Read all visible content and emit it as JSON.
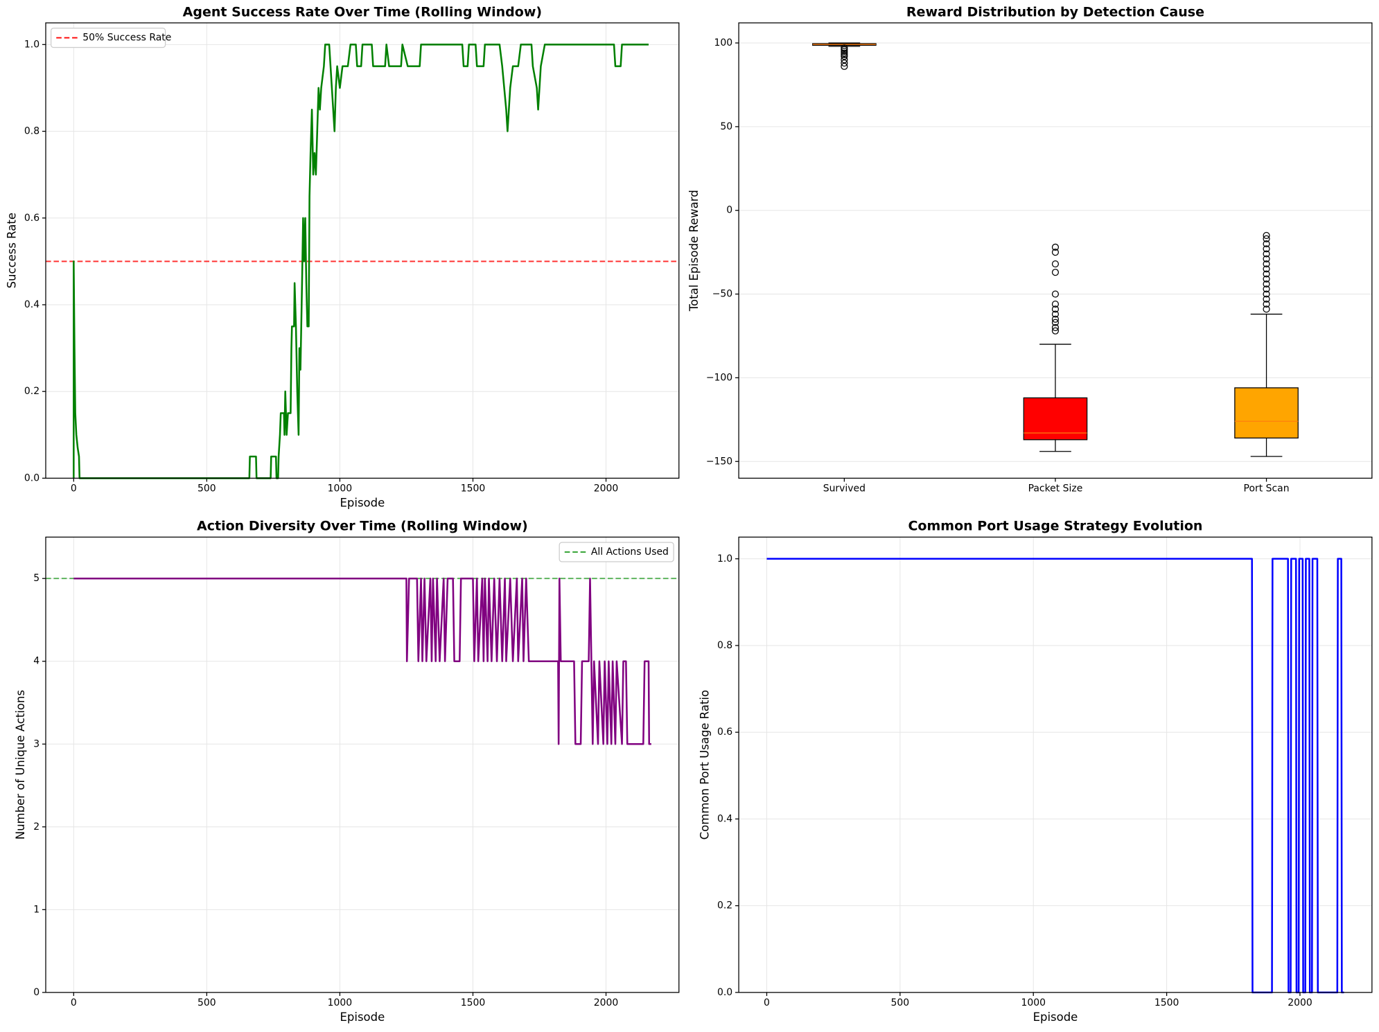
{
  "chart_data": [
    {
      "type": "line",
      "title": "Agent Success Rate Over Time (Rolling Window)",
      "xlabel": "Episode",
      "ylabel": "Success Rate",
      "xlim": [
        -105,
        2274
      ],
      "ylim": [
        0,
        1.05
      ],
      "xticks": [
        0,
        500,
        1000,
        1500,
        2000
      ],
      "yticks": [
        {
          "value": 0,
          "label": "0.0"
        },
        0.2,
        0.4,
        0.6,
        0.8,
        {
          "value": 1,
          "label": "1.0"
        }
      ],
      "grid": true,
      "legend": "upper left",
      "hlines": [
        {
          "value": 0.5,
          "label": "50% Success Rate",
          "color": "#ff0000"
        }
      ],
      "x": [
        0,
        0,
        3,
        6,
        10,
        15,
        20,
        22,
        660,
        662,
        685,
        687,
        740,
        742,
        760,
        762,
        768,
        770,
        775,
        778,
        790,
        792,
        795,
        800,
        805,
        815,
        818,
        820,
        828,
        830,
        835,
        840,
        845,
        848,
        852,
        855,
        858,
        862,
        866,
        870,
        874,
        878,
        883,
        886,
        890,
        895,
        900,
        905,
        910,
        915,
        920,
        925,
        930,
        940,
        945,
        960,
        965,
        975,
        980,
        985,
        990,
        1000,
        1010,
        1030,
        1040,
        1060,
        1065,
        1080,
        1085,
        1120,
        1125,
        1170,
        1175,
        1185,
        1230,
        1235,
        1255,
        1300,
        1305,
        1460,
        1465,
        1480,
        1485,
        1510,
        1515,
        1540,
        1545,
        1600,
        1610,
        1625,
        1630,
        1640,
        1650,
        1670,
        1680,
        1720,
        1725,
        1740,
        1745,
        1755,
        1770,
        2030,
        2035,
        2055,
        2060,
        2160
      ],
      "series": [
        {
          "color": "#008000",
          "values": [
            0,
            0.5,
            0.3,
            0.15,
            0.1,
            0.07,
            0.05,
            0,
            0,
            0.05,
            0.05,
            0,
            0,
            0.05,
            0.05,
            0,
            0,
            0.05,
            0.1,
            0.15,
            0.15,
            0.1,
            0.2,
            0.1,
            0.15,
            0.15,
            0.3,
            0.35,
            0.35,
            0.45,
            0.35,
            0.2,
            0.1,
            0.3,
            0.25,
            0.35,
            0.45,
            0.6,
            0.5,
            0.6,
            0.45,
            0.35,
            0.35,
            0.65,
            0.75,
            0.85,
            0.7,
            0.75,
            0.7,
            0.8,
            0.9,
            0.85,
            0.9,
            0.95,
            1,
            1,
            0.95,
            0.85,
            0.8,
            0.9,
            0.95,
            0.9,
            0.95,
            0.95,
            1,
            1,
            0.95,
            0.95,
            1,
            1,
            0.95,
            0.95,
            1,
            0.95,
            0.95,
            1,
            0.95,
            0.95,
            1,
            1,
            0.95,
            0.95,
            1,
            1,
            0.95,
            0.95,
            1,
            1,
            0.95,
            0.85,
            0.8,
            0.9,
            0.95,
            0.95,
            1,
            1,
            0.95,
            0.9,
            0.85,
            0.95,
            1,
            1,
            0.95,
            0.95,
            1,
            1
          ]
        }
      ]
    },
    {
      "type": "box",
      "title": "Reward Distribution by Detection Cause",
      "ylabel": "Total Episode Reward",
      "ylim": [
        -160,
        112
      ],
      "yticks": [
        {
          "value": -150,
          "label": "−150"
        },
        {
          "value": -100,
          "label": "−100"
        },
        {
          "value": -50,
          "label": "−50"
        },
        0,
        50,
        100
      ],
      "grid": true,
      "categories": [
        "Survived",
        "Packet Size",
        "Port Scan"
      ],
      "boxes": [
        {
          "color": "#d2691e",
          "whislo": 98,
          "q1": 98.6,
          "med": 99.2,
          "q3": 99.6,
          "whishi": 100,
          "fliers": [
            86,
            88,
            90,
            92,
            93,
            94,
            95,
            96,
            97
          ]
        },
        {
          "color": "#ff0000",
          "whislo": -144,
          "q1": -137,
          "med": -133,
          "q3": -112,
          "whishi": -80,
          "fliers": [
            -22,
            -25,
            -32,
            -37,
            -50,
            -56,
            -59,
            -62,
            -65,
            -67,
            -70,
            -72
          ]
        },
        {
          "color": "#ffa500",
          "whislo": -147,
          "q1": -136,
          "med": -126,
          "q3": -106,
          "whishi": -62,
          "fliers": [
            -15,
            -17,
            -20,
            -23,
            -26,
            -29,
            -32,
            -35,
            -38,
            -41,
            -44,
            -47,
            -50,
            -53,
            -56,
            -59
          ]
        }
      ]
    },
    {
      "type": "line",
      "title": "Action Diversity Over Time (Rolling Window)",
      "xlabel": "Episode",
      "ylabel": "Number of Unique Actions",
      "xlim": [
        -105,
        2274
      ],
      "ylim": [
        0,
        5.5
      ],
      "xticks": [
        0,
        500,
        1000,
        1500,
        2000
      ],
      "yticks": [
        0,
        1,
        2,
        3,
        4,
        5
      ],
      "grid": true,
      "legend": "upper right",
      "hlines": [
        {
          "value": 5,
          "label": "All Actions Used",
          "color": "#2ca02c"
        }
      ],
      "x": [
        0,
        1250,
        1252,
        1260,
        1290,
        1295,
        1305,
        1310,
        1318,
        1325,
        1340,
        1345,
        1350,
        1360,
        1365,
        1375,
        1390,
        1395,
        1405,
        1425,
        1430,
        1450,
        1455,
        1500,
        1505,
        1515,
        1520,
        1535,
        1540,
        1545,
        1555,
        1560,
        1570,
        1580,
        1590,
        1600,
        1610,
        1620,
        1625,
        1640,
        1650,
        1665,
        1670,
        1685,
        1690,
        1700,
        1710,
        1820,
        1822,
        1825,
        1830,
        1880,
        1885,
        1905,
        1910,
        1935,
        1940,
        1945,
        1950,
        1955,
        1970,
        1975,
        1990,
        1995,
        2005,
        2010,
        2020,
        2025,
        2035,
        2040,
        2060,
        2065,
        2075,
        2080,
        2140,
        2145,
        2160,
        2162,
        2170
      ],
      "series": [
        {
          "color": "#800080",
          "values": [
            5,
            5,
            4,
            5,
            5,
            4,
            5,
            4,
            5,
            4,
            5,
            4,
            5,
            4,
            5,
            4,
            5,
            4,
            5,
            5,
            4,
            4,
            5,
            5,
            4,
            5,
            4,
            5,
            4,
            5,
            4,
            5,
            4,
            5,
            4,
            5,
            4,
            5,
            4,
            5,
            4,
            5,
            4,
            5,
            4,
            5,
            4,
            4,
            3,
            5,
            4,
            4,
            3,
            3,
            4,
            4,
            5,
            4,
            3,
            4,
            3,
            4,
            3,
            4,
            3,
            4,
            3,
            4,
            3,
            4,
            3,
            4,
            4,
            3,
            3,
            4,
            4,
            3,
            3
          ]
        }
      ]
    },
    {
      "type": "line",
      "title": "Common Port Usage Strategy Evolution",
      "xlabel": "Episode",
      "ylabel": "Common Port Usage Ratio",
      "xlim": [
        -105,
        2270
      ],
      "ylim": [
        0,
        1.05
      ],
      "xticks": [
        0,
        500,
        1000,
        1500,
        2000
      ],
      "yticks": [
        {
          "value": 0,
          "label": "0.0"
        },
        0.2,
        0.4,
        0.6,
        0.8,
        {
          "value": 1,
          "label": "1.0"
        }
      ],
      "grid": true,
      "x": [
        0,
        1820,
        1822,
        1895,
        1897,
        1955,
        1957,
        1965,
        1967,
        1985,
        1987,
        1995,
        1997,
        2010,
        2012,
        2020,
        2022,
        2035,
        2037,
        2045,
        2047,
        2065,
        2067,
        2140,
        2142,
        2155,
        2157,
        2165
      ],
      "series": [
        {
          "color": "#0000ff",
          "values": [
            1,
            1,
            0,
            0,
            1,
            1,
            0,
            0,
            1,
            1,
            0,
            0,
            1,
            1,
            0,
            0,
            1,
            1,
            0,
            0,
            1,
            1,
            0,
            0,
            1,
            1,
            0,
            0
          ]
        }
      ]
    }
  ]
}
